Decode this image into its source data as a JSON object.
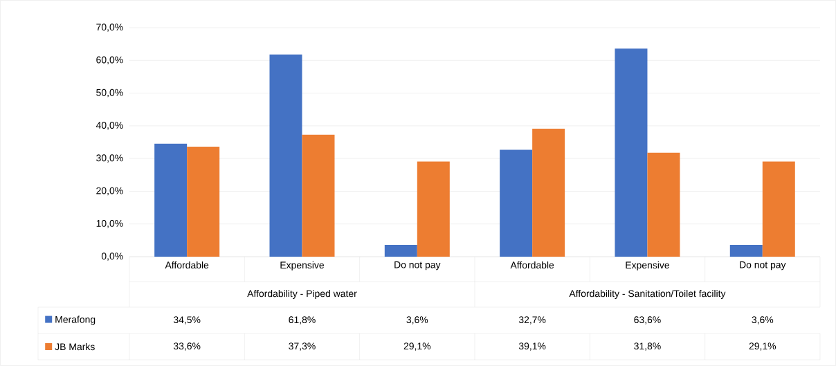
{
  "chart_data": {
    "type": "bar",
    "categories": [
      "Affordable",
      "Expensive",
      "Do not pay",
      "Affordable",
      "Expensive",
      "Do not pay"
    ],
    "annotations": [
      "Affordability - Piped water",
      "Affordability - Sanitation/Toilet facility"
    ],
    "series": [
      {
        "name": "Merafong",
        "color": "#4472c4",
        "values": [
          34.5,
          61.8,
          3.6,
          32.7,
          63.6,
          3.6
        ],
        "value_labels": [
          "34,5%",
          "61,8%",
          "3,6%",
          "32,7%",
          "63,6%",
          "3,6%"
        ]
      },
      {
        "name": "JB Marks",
        "color": "#ed7d31",
        "values": [
          33.6,
          37.3,
          29.1,
          39.1,
          31.8,
          29.1
        ],
        "value_labels": [
          "33,6%",
          "37,3%",
          "29,1%",
          "39,1%",
          "31,8%",
          "29,1%"
        ]
      }
    ],
    "ylim": [
      0,
      70
    ],
    "yticks": [
      {
        "value": 0,
        "label": "0,0%"
      },
      {
        "value": 10,
        "label": "10,0%"
      },
      {
        "value": 20,
        "label": "20,0%"
      },
      {
        "value": 30,
        "label": "30,0%"
      },
      {
        "value": 40,
        "label": "40,0%"
      },
      {
        "value": 50,
        "label": "50,0%"
      },
      {
        "value": 60,
        "label": "60,0%"
      },
      {
        "value": 70,
        "label": "70,0%"
      }
    ],
    "grid": "y",
    "legend": "bottom"
  }
}
